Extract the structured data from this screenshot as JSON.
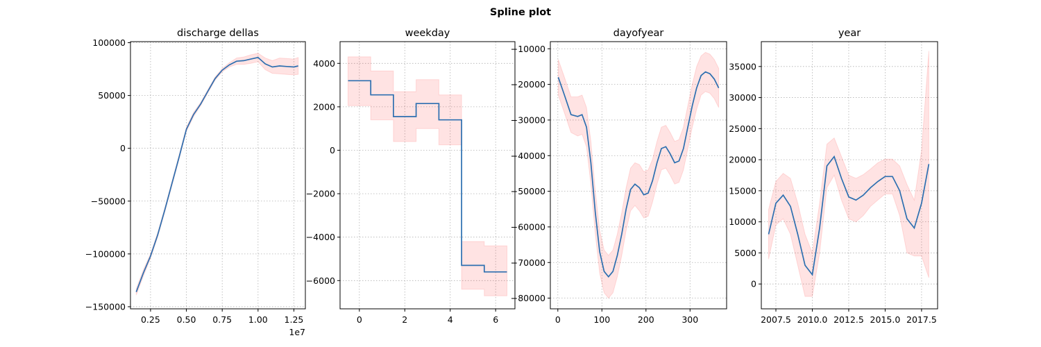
{
  "figure": {
    "suptitle": "Spline plot"
  },
  "colors": {
    "line": "#2c6fb0",
    "band": "#ff0000",
    "grid": "#b0b0b0"
  },
  "chart_data": [
    {
      "type": "line",
      "title": "discharge dellas",
      "xlabel": "",
      "ylabel": "",
      "x_offset_label": "1e7",
      "grid": true,
      "xlim": [
        1100000,
        13300000
      ],
      "ylim": [
        -152000,
        101000
      ],
      "xticks": [
        2500000,
        5000000,
        7500000,
        10000000,
        12500000
      ],
      "xtick_labels": [
        "0.25",
        "0.50",
        "0.75",
        "1.00",
        "1.25"
      ],
      "yticks": [
        -150000,
        -100000,
        -50000,
        0,
        50000,
        100000
      ],
      "ytick_labels": [
        "−150000",
        "−100000",
        "−50000",
        "0",
        "50000",
        "100000"
      ],
      "step": false,
      "series": [
        {
          "x": [
            1500000,
            2000000,
            2500000,
            3000000,
            3500000,
            4000000,
            4500000,
            5000000,
            5500000,
            6000000,
            6500000,
            7000000,
            7500000,
            8000000,
            8500000,
            9000000,
            9500000,
            10000000,
            10500000,
            11000000,
            11500000,
            12000000,
            12500000,
            12800000
          ],
          "y": [
            -136000,
            -118000,
            -102000,
            -82000,
            -58000,
            -33000,
            -8000,
            18000,
            32000,
            42000,
            54000,
            66000,
            74000,
            79000,
            82500,
            83000,
            84500,
            86000,
            80000,
            77000,
            78000,
            77500,
            77000,
            78000
          ],
          "lower": [
            -139000,
            -121000,
            -104000,
            -84000,
            -60000,
            -35000,
            -10000,
            16000,
            30000,
            40500,
            52500,
            64500,
            72500,
            77000,
            79500,
            79500,
            80500,
            82000,
            74500,
            71000,
            70500,
            70000,
            69500,
            70000
          ],
          "upper": [
            -133000,
            -115000,
            -100000,
            -80000,
            -56000,
            -31000,
            -6000,
            20000,
            34000,
            43500,
            55500,
            67500,
            75500,
            81000,
            85500,
            86500,
            88500,
            90000,
            85500,
            83000,
            85500,
            85000,
            84500,
            86000
          ]
        }
      ]
    },
    {
      "type": "line",
      "title": "weekday",
      "xlabel": "",
      "ylabel": "",
      "grid": true,
      "xlim": [
        -0.85,
        6.85
      ],
      "ylim": [
        -7300,
        5000
      ],
      "xticks": [
        0,
        2,
        4,
        6
      ],
      "xtick_labels": [
        "0",
        "2",
        "4",
        "6"
      ],
      "yticks": [
        -6000,
        -4000,
        -2000,
        0,
        2000,
        4000
      ],
      "ytick_labels": [
        "−6000",
        "−4000",
        "−2000",
        "0",
        "2000",
        "4000"
      ],
      "step": true,
      "series": [
        {
          "x": [
            -0.5,
            0.5,
            0.5,
            1.5,
            1.5,
            2.5,
            2.5,
            3.5,
            3.5,
            4.5,
            4.5,
            5.5,
            5.5,
            6.5
          ],
          "y": [
            3200,
            3200,
            2550,
            2550,
            1550,
            1550,
            2150,
            2150,
            1400,
            1400,
            -5300,
            -5300,
            -5600,
            -5600
          ],
          "lower": [
            2050,
            2050,
            1400,
            1400,
            400,
            400,
            1000,
            1000,
            250,
            250,
            -6400,
            -6400,
            -6700,
            -6700
          ],
          "upper": [
            4300,
            4300,
            3650,
            3650,
            2700,
            2700,
            3250,
            3250,
            2550,
            2550,
            -4200,
            -4200,
            -4400,
            -4400
          ]
        }
      ]
    },
    {
      "type": "line",
      "title": "dayofyear",
      "xlabel": "",
      "ylabel": "",
      "grid": true,
      "xlim": [
        -17,
        383
      ],
      "ylim": [
        -83000,
        -8000
      ],
      "xticks": [
        0,
        100,
        200,
        300
      ],
      "xtick_labels": [
        "0",
        "100",
        "200",
        "300"
      ],
      "yticks": [
        -80000,
        -70000,
        -60000,
        -50000,
        -40000,
        -30000,
        -20000,
        -10000
      ],
      "ytick_labels": [
        "−80000",
        "−70000",
        "−60000",
        "−50000",
        "−40000",
        "−30000",
        "−20000",
        "−10000"
      ],
      "step": false,
      "series": [
        {
          "x": [
            1,
            15,
            30,
            45,
            55,
            65,
            75,
            85,
            95,
            105,
            115,
            125,
            135,
            145,
            155,
            165,
            175,
            185,
            195,
            205,
            215,
            225,
            235,
            245,
            255,
            265,
            275,
            285,
            295,
            305,
            315,
            325,
            335,
            345,
            355,
            365
          ],
          "y": [
            -18000,
            -23000,
            -28500,
            -29000,
            -28500,
            -32000,
            -42000,
            -56000,
            -67000,
            -72500,
            -74000,
            -72500,
            -68000,
            -62000,
            -55000,
            -49500,
            -48000,
            -49000,
            -51000,
            -50500,
            -47000,
            -42000,
            -38000,
            -37500,
            -39500,
            -42000,
            -41500,
            -38000,
            -32000,
            -26000,
            -21000,
            -17500,
            -16500,
            -17000,
            -18500,
            -21000
          ],
          "lower": [
            -23000,
            -28000,
            -33500,
            -34500,
            -34000,
            -37500,
            -48000,
            -62000,
            -73000,
            -78500,
            -80000,
            -78500,
            -74000,
            -68000,
            -61000,
            -55500,
            -54000,
            -55500,
            -57500,
            -57000,
            -53000,
            -48000,
            -44000,
            -43500,
            -45500,
            -48000,
            -47500,
            -44000,
            -38000,
            -32000,
            -27000,
            -23000,
            -22000,
            -22500,
            -24000,
            -26500
          ],
          "upper": [
            -13000,
            -18000,
            -23500,
            -23500,
            -23000,
            -26500,
            -36000,
            -50000,
            -61000,
            -66500,
            -68000,
            -66500,
            -62000,
            -56000,
            -49000,
            -43500,
            -42000,
            -42500,
            -44500,
            -44000,
            -41000,
            -36000,
            -32000,
            -31500,
            -33500,
            -36000,
            -35500,
            -32000,
            -26000,
            -20000,
            -15000,
            -12000,
            -11000,
            -11500,
            -13000,
            -15500
          ]
        }
      ]
    },
    {
      "type": "line",
      "title": "year",
      "xlabel": "",
      "ylabel": "",
      "grid": true,
      "xlim": [
        2006.5,
        2018.6
      ],
      "ylim": [
        -4000,
        39000
      ],
      "xticks": [
        2007.5,
        2010.0,
        2012.5,
        2015.0,
        2017.5
      ],
      "xtick_labels": [
        "2007.5",
        "2010.0",
        "2012.5",
        "2015.0",
        "2017.5"
      ],
      "yticks": [
        0,
        5000,
        10000,
        15000,
        20000,
        25000,
        30000,
        35000
      ],
      "ytick_labels": [
        "0",
        "5000",
        "10000",
        "15000",
        "20000",
        "25000",
        "30000",
        "35000"
      ],
      "step": false,
      "series": [
        {
          "x": [
            2007.0,
            2007.5,
            2008.0,
            2008.5,
            2009.0,
            2009.5,
            2010.0,
            2010.5,
            2011.0,
            2011.5,
            2012.0,
            2012.5,
            2013.0,
            2013.5,
            2014.0,
            2014.5,
            2015.0,
            2015.5,
            2016.0,
            2016.5,
            2017.0,
            2017.5,
            2018.0
          ],
          "y": [
            8000,
            13000,
            14300,
            12500,
            8000,
            3000,
            1500,
            9000,
            19000,
            20500,
            17000,
            14000,
            13500,
            14300,
            15500,
            16500,
            17300,
            17300,
            15000,
            10500,
            9000,
            13000,
            19300
          ],
          "lower": [
            4000,
            9500,
            10500,
            8000,
            3000,
            -2000,
            -2000,
            5000,
            15500,
            17500,
            13500,
            10500,
            10000,
            11000,
            12500,
            13500,
            14500,
            14500,
            11000,
            5000,
            4500,
            4500,
            1000
          ],
          "upper": [
            12000,
            16500,
            17800,
            17000,
            13000,
            8000,
            5000,
            13000,
            22500,
            23500,
            20500,
            17500,
            17000,
            17600,
            18500,
            19500,
            20100,
            20100,
            19000,
            16000,
            13500,
            21500,
            37500
          ]
        }
      ]
    }
  ]
}
